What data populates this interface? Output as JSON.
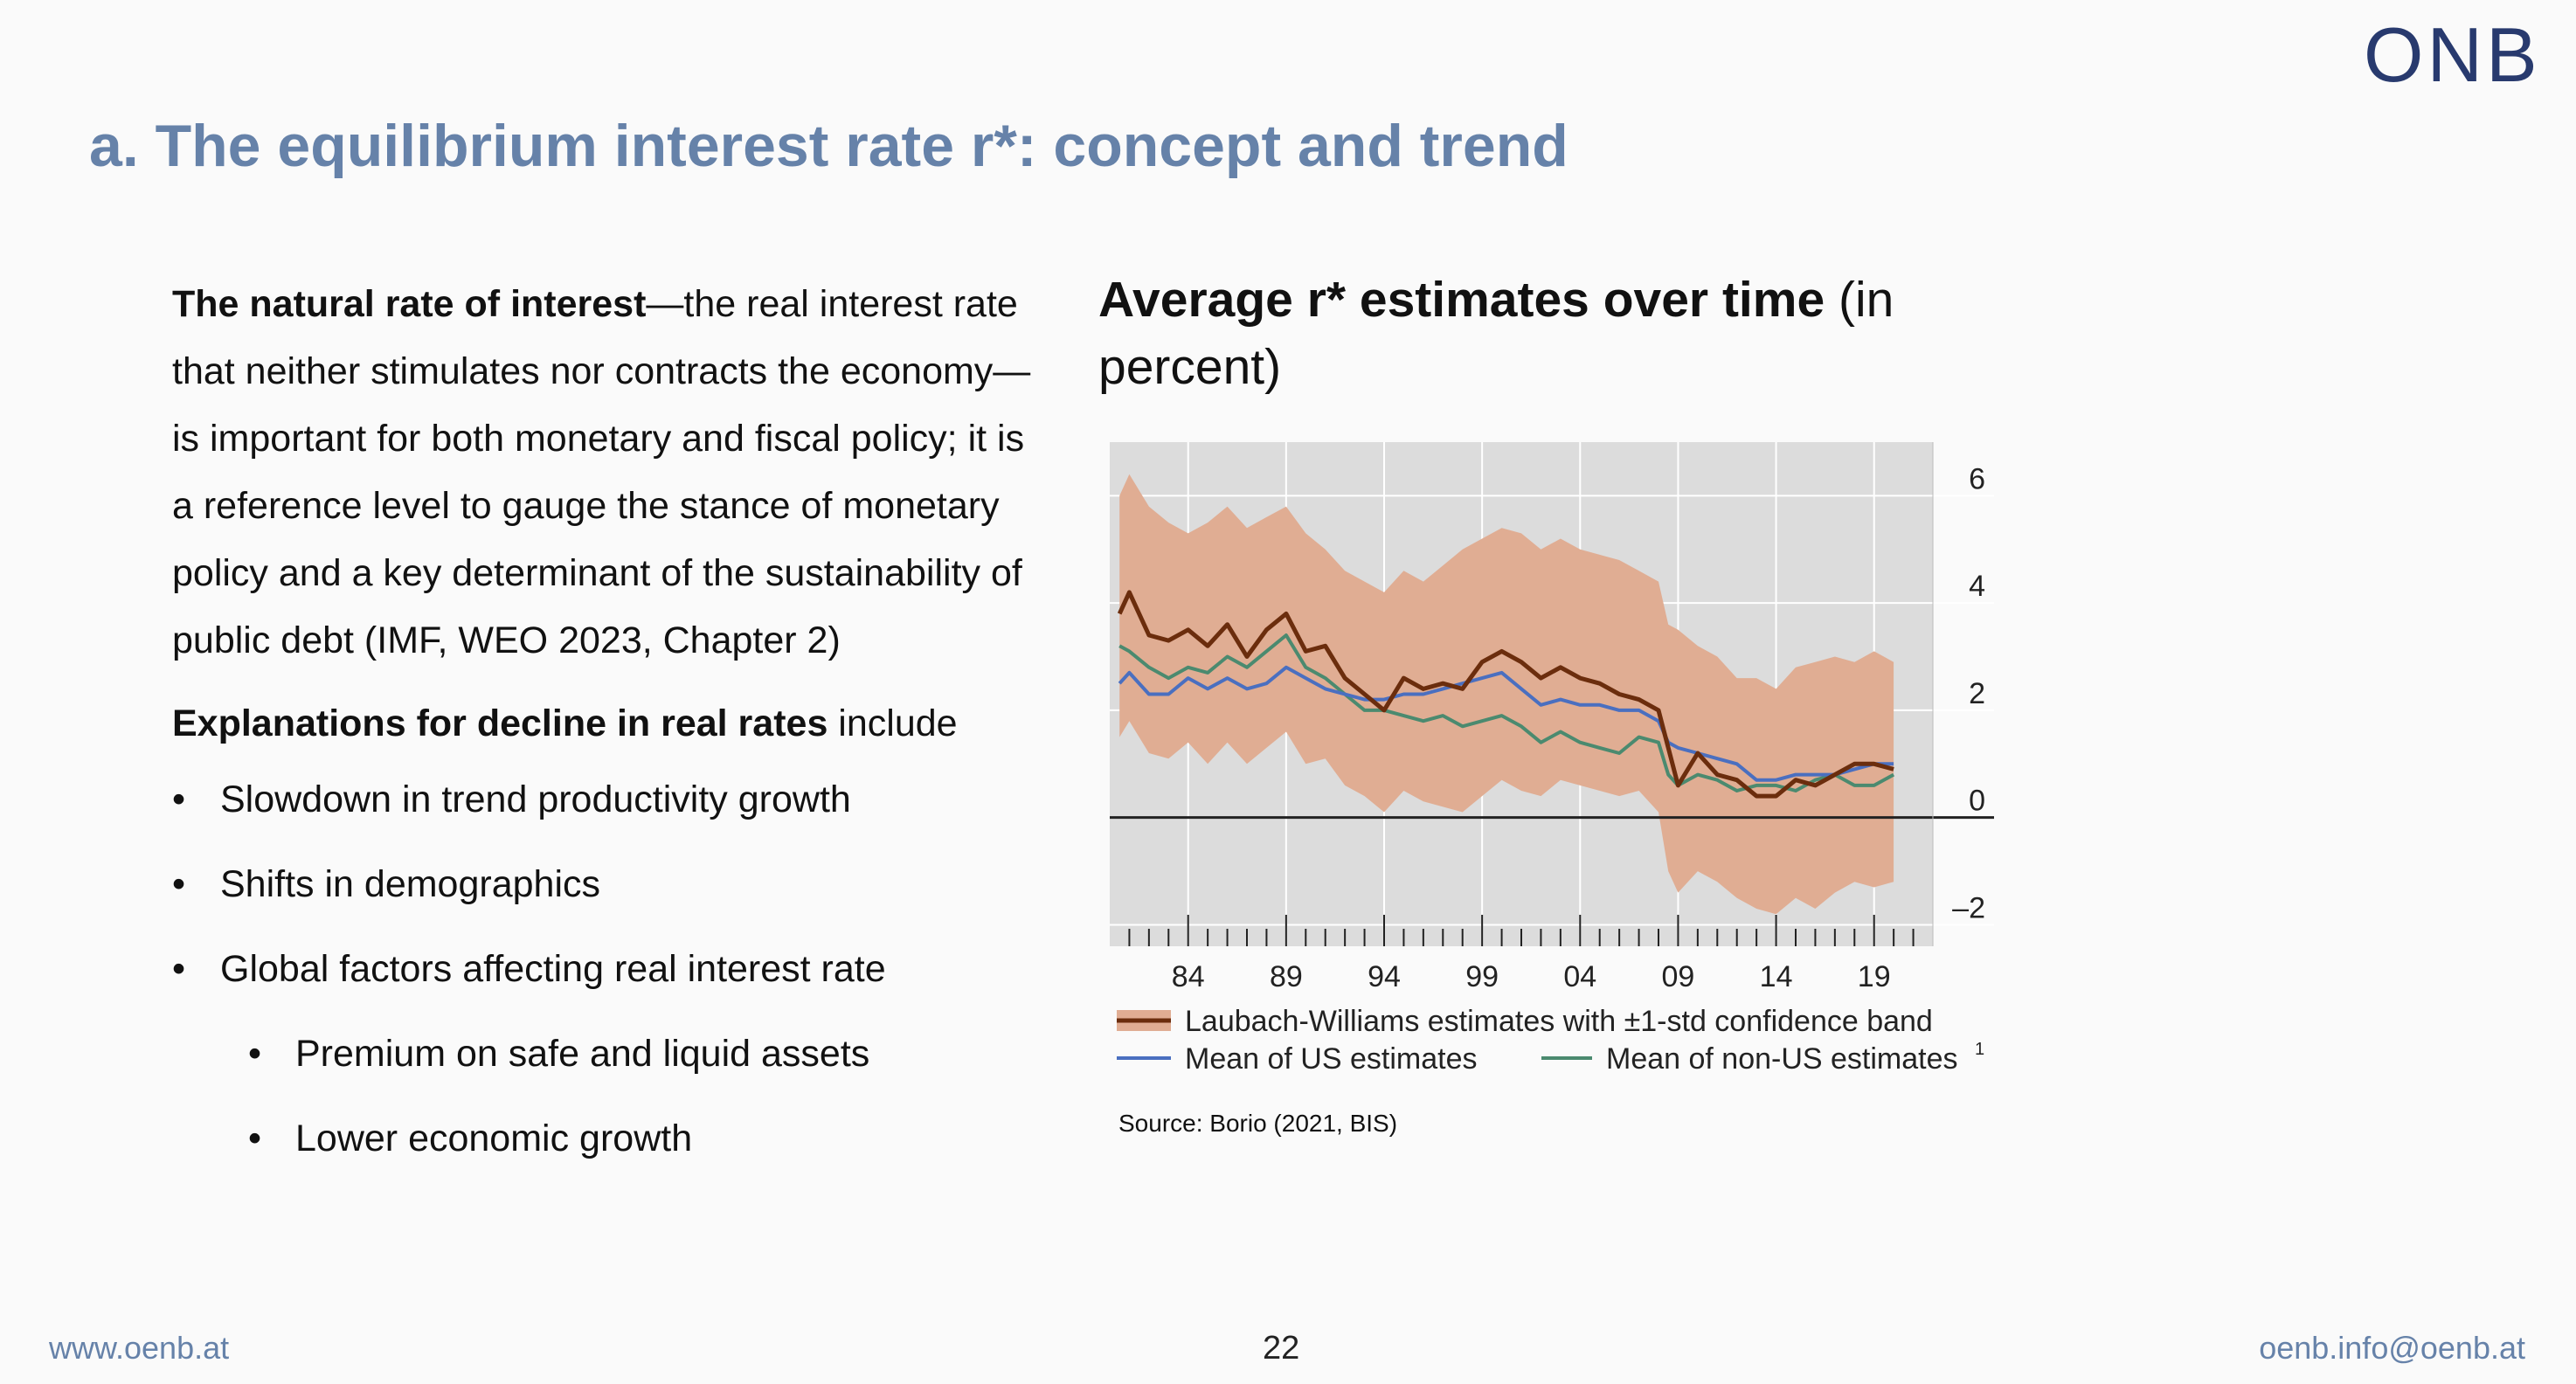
{
  "brand": {
    "logo": "ONB",
    "accent": "#6682a9",
    "logo_color": "#283a6e"
  },
  "slide": {
    "title": "a. The equilibrium interest rate r*: concept and trend",
    "intro_bold": "The natural rate of interest",
    "intro_rest": "—the real interest rate that neither stimulates nor contracts the economy—is important for both monetary and fiscal policy; it is a reference level to gauge the stance of monetary policy and a key determinant of the sustainability of public debt (IMF, WEO 2023, Chapter 2)",
    "explain_bold": "Explanations for decline in real rates",
    "explain_rest": " include",
    "bullets": [
      "Slowdown in trend productivity growth",
      "Shifts in demographics",
      "Global factors affecting real interest rate"
    ],
    "sub_bullets": [
      "Premium on safe and liquid assets",
      "Lower economic growth"
    ],
    "bullet_char": "•"
  },
  "chart_title": {
    "bold": "Average r* estimates over time",
    "rest": " (in percent)"
  },
  "source": "Source: Borio (2021, BIS)",
  "footer": {
    "url": "www.oenb.at",
    "page": "22",
    "email": "oenb.info@oenb.at"
  },
  "chart_data": {
    "type": "line",
    "x_ticks": [
      1984,
      1989,
      1994,
      1999,
      2004,
      2009,
      2014,
      2019
    ],
    "x_tick_labels": [
      "84",
      "89",
      "94",
      "99",
      "04",
      "09",
      "14",
      "19"
    ],
    "xlim": [
      1980,
      2022
    ],
    "ylim": [
      -2.4,
      7
    ],
    "y_ticks": [
      -2,
      0,
      2,
      4,
      6
    ],
    "y_tick_labels": [
      "–2",
      "0",
      "2",
      "4",
      "6"
    ],
    "grid": true,
    "legend_position": "bottom",
    "colors": {
      "band": "#e0ad93",
      "lw": "#6b2d0d",
      "us": "#4a6fc0",
      "nonus": "#4b8a6f",
      "plot_bg": "#dcdcdc",
      "grid": "#ffffff",
      "zero": "#222222"
    },
    "legend": [
      {
        "label": "Laubach-Williams estimates with ±1-std confidence band",
        "key": "band"
      },
      {
        "label": "Mean of US estimates",
        "key": "us"
      },
      {
        "label": "Mean of non-US estimates",
        "key": "nonus",
        "sup": "1"
      }
    ],
    "series": [
      {
        "name": "Laubach-Williams estimates",
        "key": "lw",
        "x": [
          1980.5,
          1981,
          1982,
          1983,
          1984,
          1985,
          1986,
          1987,
          1988,
          1989,
          1990,
          1991,
          1992,
          1993,
          1994,
          1995,
          1996,
          1997,
          1998,
          1999,
          2000,
          2001,
          2002,
          2003,
          2004,
          2005,
          2006,
          2007,
          2008,
          2008.5,
          2009,
          2010,
          2011,
          2012,
          2013,
          2014,
          2015,
          2016,
          2017,
          2018,
          2019,
          2020
        ],
        "y": [
          3.8,
          4.2,
          3.4,
          3.3,
          3.5,
          3.2,
          3.6,
          3.0,
          3.5,
          3.8,
          3.1,
          3.2,
          2.6,
          2.3,
          2.0,
          2.6,
          2.4,
          2.5,
          2.4,
          2.9,
          3.1,
          2.9,
          2.6,
          2.8,
          2.6,
          2.5,
          2.3,
          2.2,
          2.0,
          1.3,
          0.6,
          1.2,
          0.8,
          0.7,
          0.4,
          0.4,
          0.7,
          0.6,
          0.8,
          1.0,
          1.0,
          0.9
        ]
      },
      {
        "name": "Laubach-Williams +1 std",
        "key": "band_upper",
        "x": [
          1980.5,
          1981,
          1982,
          1983,
          1984,
          1985,
          1986,
          1987,
          1988,
          1989,
          1990,
          1991,
          1992,
          1993,
          1994,
          1995,
          1996,
          1997,
          1998,
          1999,
          2000,
          2001,
          2002,
          2003,
          2004,
          2005,
          2006,
          2007,
          2008,
          2008.5,
          2009,
          2010,
          2011,
          2012,
          2013,
          2014,
          2015,
          2016,
          2017,
          2018,
          2019,
          2020
        ],
        "y": [
          6.0,
          6.4,
          5.8,
          5.5,
          5.3,
          5.5,
          5.8,
          5.4,
          5.6,
          5.8,
          5.3,
          5.0,
          4.6,
          4.4,
          4.2,
          4.6,
          4.4,
          4.7,
          5.0,
          5.2,
          5.4,
          5.3,
          5.0,
          5.2,
          5.0,
          4.9,
          4.8,
          4.6,
          4.4,
          3.6,
          3.5,
          3.2,
          3.0,
          2.6,
          2.6,
          2.4,
          2.8,
          2.9,
          3.0,
          2.9,
          3.1,
          2.9
        ]
      },
      {
        "name": "Laubach-Williams -1 std",
        "key": "band_lower",
        "x": [
          1980.5,
          1981,
          1982,
          1983,
          1984,
          1985,
          1986,
          1987,
          1988,
          1989,
          1990,
          1991,
          1992,
          1993,
          1994,
          1995,
          1996,
          1997,
          1998,
          1999,
          2000,
          2001,
          2002,
          2003,
          2004,
          2005,
          2006,
          2007,
          2008,
          2008.5,
          2009,
          2010,
          2011,
          2012,
          2013,
          2014,
          2015,
          2016,
          2017,
          2018,
          2019,
          2020
        ],
        "y": [
          1.5,
          1.8,
          1.2,
          1.1,
          1.4,
          1.0,
          1.4,
          1.0,
          1.3,
          1.6,
          1.0,
          1.1,
          0.6,
          0.4,
          0.1,
          0.5,
          0.3,
          0.2,
          0.1,
          0.4,
          0.7,
          0.5,
          0.4,
          0.7,
          0.6,
          0.5,
          0.4,
          0.5,
          0.1,
          -1.0,
          -1.4,
          -1.0,
          -1.2,
          -1.5,
          -1.7,
          -1.8,
          -1.5,
          -1.7,
          -1.4,
          -1.2,
          -1.3,
          -1.2
        ]
      },
      {
        "name": "Mean of US estimates",
        "key": "us",
        "x": [
          1980.5,
          1981,
          1982,
          1983,
          1984,
          1985,
          1986,
          1987,
          1988,
          1989,
          1990,
          1991,
          1992,
          1993,
          1994,
          1995,
          1996,
          1997,
          1998,
          1999,
          2000,
          2001,
          2002,
          2003,
          2004,
          2005,
          2006,
          2007,
          2008,
          2008.5,
          2009,
          2010,
          2011,
          2012,
          2013,
          2014,
          2015,
          2016,
          2017,
          2018,
          2019,
          2020
        ],
        "y": [
          2.5,
          2.7,
          2.3,
          2.3,
          2.6,
          2.4,
          2.6,
          2.4,
          2.5,
          2.8,
          2.6,
          2.4,
          2.3,
          2.2,
          2.2,
          2.3,
          2.3,
          2.4,
          2.5,
          2.6,
          2.7,
          2.4,
          2.1,
          2.2,
          2.1,
          2.1,
          2.0,
          2.0,
          1.8,
          1.4,
          1.3,
          1.2,
          1.1,
          1.0,
          0.7,
          0.7,
          0.8,
          0.8,
          0.8,
          0.9,
          1.0,
          1.0
        ]
      },
      {
        "name": "Mean of non-US estimates",
        "key": "nonus",
        "x": [
          1980.5,
          1981,
          1982,
          1983,
          1984,
          1985,
          1986,
          1987,
          1988,
          1989,
          1990,
          1991,
          1992,
          1993,
          1994,
          1995,
          1996,
          1997,
          1998,
          1999,
          2000,
          2001,
          2002,
          2003,
          2004,
          2005,
          2006,
          2007,
          2008,
          2008.5,
          2009,
          2010,
          2011,
          2012,
          2013,
          2014,
          2015,
          2016,
          2017,
          2018,
          2019,
          2020
        ],
        "y": [
          3.2,
          3.1,
          2.8,
          2.6,
          2.8,
          2.7,
          3.0,
          2.8,
          3.1,
          3.4,
          2.8,
          2.6,
          2.3,
          2.0,
          2.0,
          1.9,
          1.8,
          1.9,
          1.7,
          1.8,
          1.9,
          1.7,
          1.4,
          1.6,
          1.4,
          1.3,
          1.2,
          1.5,
          1.4,
          0.8,
          0.6,
          0.8,
          0.7,
          0.5,
          0.6,
          0.6,
          0.5,
          0.7,
          0.8,
          0.6,
          0.6,
          0.8
        ]
      }
    ]
  }
}
